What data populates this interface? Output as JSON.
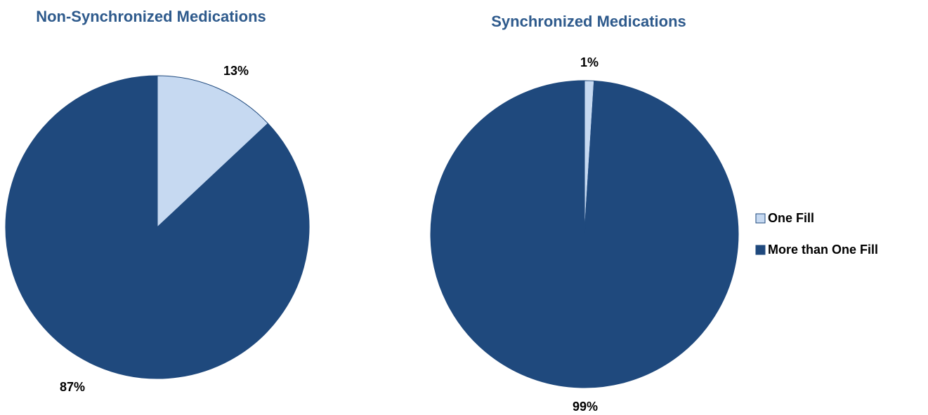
{
  "chart_data": [
    {
      "type": "pie",
      "title": "Non-Synchronized Medications",
      "values": [
        13,
        87
      ],
      "value_labels": [
        "13%",
        "87%"
      ],
      "colors": [
        "#c6d9f1",
        "#1f497d"
      ]
    },
    {
      "type": "pie",
      "title": "Synchronized Medications",
      "values": [
        1,
        99
      ],
      "value_labels": [
        "1%",
        "99%"
      ],
      "colors": [
        "#c6d9f1",
        "#1f497d"
      ]
    }
  ],
  "legend": {
    "position": "right",
    "labels": [
      "One Fill",
      "More than One Fill"
    ],
    "colors": [
      "#c6d9f1",
      "#1f497d"
    ]
  }
}
